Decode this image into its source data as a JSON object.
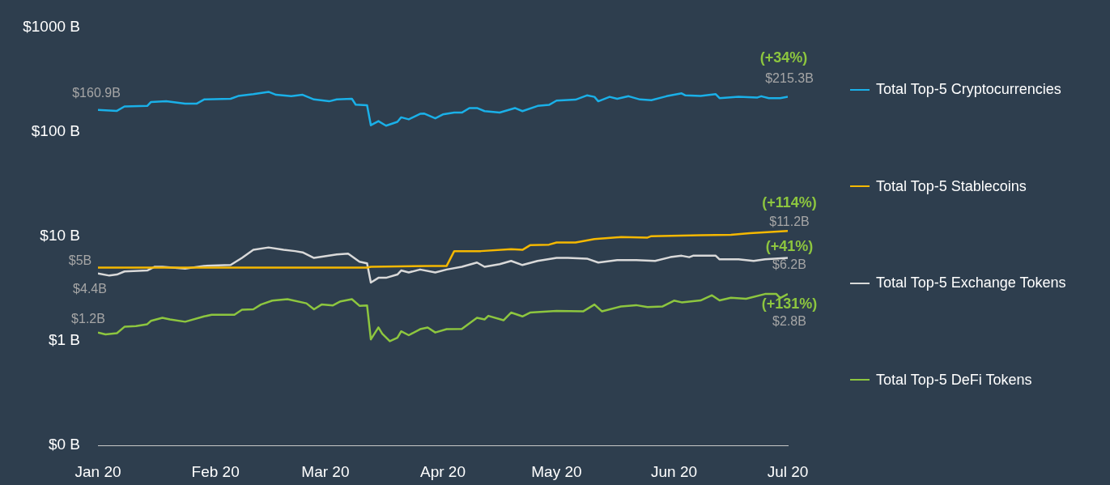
{
  "chart_data": {
    "type": "line",
    "log": "y",
    "legend": "right",
    "xlim": [
      "2020-01-01",
      "2020-07-01"
    ],
    "xticks": [
      {
        "value": "2020-01-01",
        "label": "Jan 20"
      },
      {
        "value": "2020-02-01",
        "label": "Feb 20"
      },
      {
        "value": "2020-03-01",
        "label": "Mar 20"
      },
      {
        "value": "2020-04-01",
        "label": "Apr 20"
      },
      {
        "value": "2020-05-01",
        "label": "May 20"
      },
      {
        "value": "2020-06-01",
        "label": "Jun 20"
      },
      {
        "value": "2020-07-01",
        "label": "Jul 20"
      }
    ],
    "ylim": [
      0.1,
      1000
    ],
    "yticks": [
      {
        "value": 0.1,
        "label": "$0 B"
      },
      {
        "value": 1,
        "label": "$1 B"
      },
      {
        "value": 10,
        "label": "$10 B"
      },
      {
        "value": 100,
        "label": "$100 B"
      },
      {
        "value": 1000,
        "label": "$1000 B"
      }
    ],
    "series": [
      {
        "name": "Total Top-5 Cryptocurrencies",
        "color": "#1ab0e8",
        "x": [
          "2020-01-01",
          "2020-01-06",
          "2020-01-08",
          "2020-01-14",
          "2020-01-15",
          "2020-01-19",
          "2020-01-24",
          "2020-01-27",
          "2020-01-29",
          "2020-02-05",
          "2020-02-07",
          "2020-02-11",
          "2020-02-15",
          "2020-02-17",
          "2020-02-21",
          "2020-02-24",
          "2020-02-27",
          "2020-03-02",
          "2020-03-04",
          "2020-03-08",
          "2020-03-09",
          "2020-03-12",
          "2020-03-13",
          "2020-03-15",
          "2020-03-17",
          "2020-03-20",
          "2020-03-21",
          "2020-03-23",
          "2020-03-26",
          "2020-03-27",
          "2020-03-30",
          "2020-04-01",
          "2020-04-04",
          "2020-04-06",
          "2020-04-08",
          "2020-04-10",
          "2020-04-12",
          "2020-04-16",
          "2020-04-20",
          "2020-04-22",
          "2020-04-26",
          "2020-04-29",
          "2020-05-01",
          "2020-05-06",
          "2020-05-09",
          "2020-05-11",
          "2020-05-12",
          "2020-05-15",
          "2020-05-17",
          "2020-05-20",
          "2020-05-23",
          "2020-05-26",
          "2020-05-30",
          "2020-06-03",
          "2020-06-04",
          "2020-06-08",
          "2020-06-12",
          "2020-06-13",
          "2020-06-18",
          "2020-06-23",
          "2020-06-24",
          "2020-06-26",
          "2020-06-29",
          "2020-07-01"
        ],
        "values": [
          160.9,
          158,
          174,
          176,
          192,
          195,
          185,
          185,
          203,
          206,
          219,
          228,
          240,
          225,
          218,
          225,
          203,
          195,
          203,
          206,
          181,
          179,
          115,
          126,
          114,
          124,
          137,
          131,
          148,
          149,
          134,
          146,
          152,
          152,
          168,
          168,
          157,
          152,
          168,
          157,
          176,
          180,
          198,
          202,
          222,
          215,
          195,
          215,
          206,
          218,
          203,
          200,
          218,
          232,
          222,
          219,
          228,
          209,
          215,
          212,
          218,
          209,
          209,
          215.3
        ]
      },
      {
        "name": "Total Top-5 Stablecoins",
        "color": "#f5b800",
        "x": [
          "2020-01-01",
          "2020-03-12",
          "2020-03-13",
          "2020-03-29",
          "2020-04-02",
          "2020-04-04",
          "2020-04-11",
          "2020-04-19",
          "2020-04-22",
          "2020-04-24",
          "2020-04-29",
          "2020-05-01",
          "2020-05-06",
          "2020-05-11",
          "2020-05-18",
          "2020-05-25",
          "2020-05-26",
          "2020-06-08",
          "2020-06-16",
          "2020-06-21",
          "2020-07-01"
        ],
        "values": [
          5,
          5,
          5.1,
          5.2,
          5.2,
          7.2,
          7.2,
          7.5,
          7.4,
          8.2,
          8.3,
          8.7,
          8.7,
          9.4,
          9.8,
          9.7,
          10,
          10.2,
          10.3,
          10.7,
          11.2
        ]
      },
      {
        "name": "Total Top-5 Exchange Tokens",
        "color": "#d9d9d9",
        "x": [
          "2020-01-01",
          "2020-01-04",
          "2020-01-06",
          "2020-01-08",
          "2020-01-14",
          "2020-01-16",
          "2020-01-18",
          "2020-01-24",
          "2020-01-29",
          "2020-02-05",
          "2020-02-08",
          "2020-02-11",
          "2020-02-15",
          "2020-02-19",
          "2020-02-22",
          "2020-02-24",
          "2020-02-27",
          "2020-03-04",
          "2020-03-07",
          "2020-03-10",
          "2020-03-12",
          "2020-03-13",
          "2020-03-15",
          "2020-03-17",
          "2020-03-20",
          "2020-03-21",
          "2020-03-23",
          "2020-03-26",
          "2020-03-30",
          "2020-04-02",
          "2020-04-06",
          "2020-04-10",
          "2020-04-12",
          "2020-04-16",
          "2020-04-19",
          "2020-04-22",
          "2020-04-26",
          "2020-05-01",
          "2020-05-04",
          "2020-05-09",
          "2020-05-12",
          "2020-05-17",
          "2020-05-22",
          "2020-05-27",
          "2020-05-31",
          "2020-06-03",
          "2020-06-05",
          "2020-06-06",
          "2020-06-12",
          "2020-06-13",
          "2020-06-18",
          "2020-06-22",
          "2020-06-25",
          "2020-07-01"
        ],
        "values": [
          4.4,
          4.2,
          4.3,
          4.6,
          4.7,
          5.1,
          5.1,
          4.9,
          5.2,
          5.3,
          6.2,
          7.4,
          7.8,
          7.4,
          7.2,
          7,
          6.2,
          6.7,
          6.8,
          5.7,
          5.5,
          3.6,
          4,
          4,
          4.3,
          4.7,
          4.5,
          4.8,
          4.5,
          4.8,
          5.1,
          5.6,
          5.1,
          5.4,
          5.8,
          5.3,
          5.8,
          6.2,
          6.2,
          6.1,
          5.6,
          5.9,
          5.9,
          5.8,
          6.3,
          6.5,
          6.3,
          6.5,
          6.5,
          6,
          6,
          5.8,
          6,
          6.2
        ]
      },
      {
        "name": "Total Top-5 DeFi Tokens",
        "color": "#8dc63f",
        "x": [
          "2020-01-01",
          "2020-01-03",
          "2020-01-06",
          "2020-01-08",
          "2020-01-11",
          "2020-01-14",
          "2020-01-15",
          "2020-01-18",
          "2020-01-20",
          "2020-01-24",
          "2020-01-29",
          "2020-01-31",
          "2020-02-06",
          "2020-02-08",
          "2020-02-11",
          "2020-02-13",
          "2020-02-16",
          "2020-02-20",
          "2020-02-25",
          "2020-02-27",
          "2020-02-29",
          "2020-03-03",
          "2020-03-05",
          "2020-03-08",
          "2020-03-10",
          "2020-03-12",
          "2020-03-13",
          "2020-03-15",
          "2020-03-16",
          "2020-03-18",
          "2020-03-20",
          "2020-03-21",
          "2020-03-23",
          "2020-03-26",
          "2020-03-28",
          "2020-03-30",
          "2020-04-02",
          "2020-04-06",
          "2020-04-10",
          "2020-04-12",
          "2020-04-13",
          "2020-04-17",
          "2020-04-19",
          "2020-04-22",
          "2020-04-24",
          "2020-05-01",
          "2020-05-08",
          "2020-05-11",
          "2020-05-13",
          "2020-05-18",
          "2020-05-22",
          "2020-05-25",
          "2020-05-29",
          "2020-06-01",
          "2020-06-03",
          "2020-06-08",
          "2020-06-11",
          "2020-06-13",
          "2020-06-16",
          "2020-06-20",
          "2020-06-25",
          "2020-06-28",
          "2020-06-29",
          "2020-07-01"
        ],
        "values": [
          1.2,
          1.15,
          1.18,
          1.36,
          1.38,
          1.44,
          1.55,
          1.66,
          1.6,
          1.52,
          1.71,
          1.77,
          1.77,
          1.98,
          2,
          2.22,
          2.42,
          2.5,
          2.28,
          2,
          2.22,
          2.18,
          2.38,
          2.5,
          2.16,
          2.18,
          1.03,
          1.34,
          1.17,
          0.99,
          1.07,
          1.23,
          1.13,
          1.29,
          1.34,
          1.2,
          1.29,
          1.3,
          1.66,
          1.6,
          1.73,
          1.57,
          1.86,
          1.71,
          1.86,
          1.93,
          1.91,
          2.22,
          1.91,
          2.13,
          2.19,
          2.1,
          2.13,
          2.42,
          2.33,
          2.43,
          2.72,
          2.43,
          2.58,
          2.52,
          2.8,
          2.8,
          2.56,
          2.8
        ]
      }
    ],
    "annotations": [
      {
        "text": "$160.9B",
        "x": "2020-01-01",
        "y": 160.9
      },
      {
        "text": "$5B",
        "x": "2020-01-01",
        "y": 5
      },
      {
        "text": "$4.4B",
        "x": "2020-01-01",
        "y": 4.4
      },
      {
        "text": "$1.2B",
        "x": "2020-01-01",
        "y": 1.2
      },
      {
        "text": "(+34%)",
        "x": "2020-07-01",
        "y": 215.3
      },
      {
        "text": "$215.3B",
        "x": "2020-07-01",
        "y": 215.3
      },
      {
        "text": "(+114%)",
        "x": "2020-07-01",
        "y": 11.2
      },
      {
        "text": "$11.2B",
        "x": "2020-07-01",
        "y": 11.2
      },
      {
        "text": "(+41%)",
        "x": "2020-07-01",
        "y": 6.2
      },
      {
        "text": "$6.2B",
        "x": "2020-07-01",
        "y": 6.2
      },
      {
        "text": "(+131%)",
        "x": "2020-07-01",
        "y": 2.8
      },
      {
        "text": "$2.8B",
        "x": "2020-07-01",
        "y": 2.8
      }
    ]
  }
}
